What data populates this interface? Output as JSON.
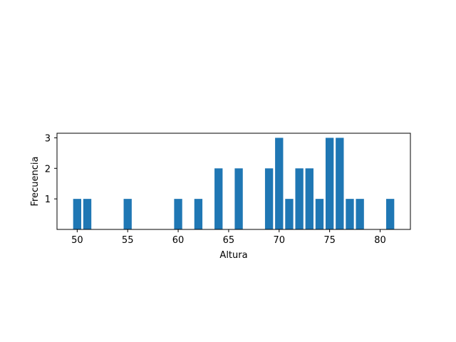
{
  "chart_data": {
    "type": "bar",
    "x": [
      50,
      51,
      55,
      60,
      62,
      64,
      66,
      69,
      70,
      71,
      72,
      73,
      74,
      75,
      76,
      77,
      78,
      81
    ],
    "values": [
      1,
      1,
      1,
      1,
      1,
      2,
      2,
      2,
      3,
      1,
      2,
      2,
      1,
      3,
      3,
      1,
      1,
      1
    ],
    "xlabel": "Altura",
    "ylabel": "Frecuencia",
    "xlim": [
      48,
      83
    ],
    "ylim": [
      0,
      3.15
    ],
    "xticks": [
      50,
      55,
      60,
      65,
      70,
      75,
      80
    ],
    "yticks": [
      1,
      2,
      3
    ],
    "bar_color": "#1f77b4",
    "grid": false,
    "legend": "none"
  }
}
